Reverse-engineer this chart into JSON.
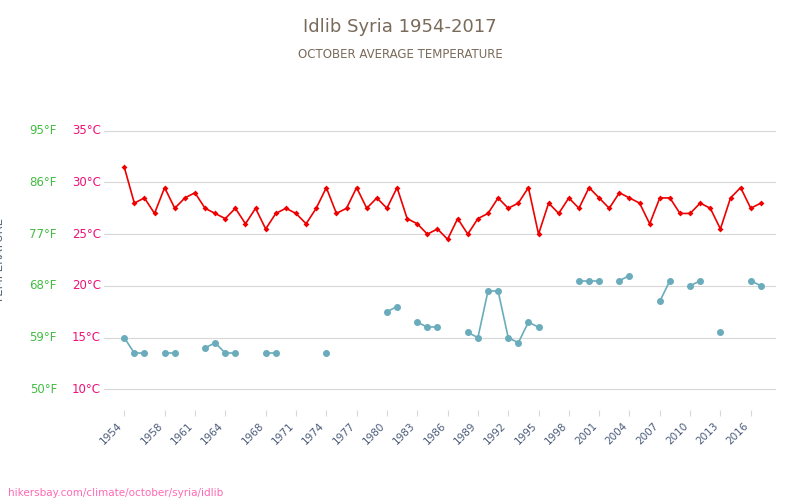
{
  "title": "Idlib Syria 1954-2017",
  "subtitle": "OCTOBER AVERAGE TEMPERATURE",
  "ylabel": "TEMPERATURE",
  "watermark": "hikersbay.com/climate/october/syria/idlib",
  "title_color": "#7a6a5a",
  "subtitle_color": "#7a6a5a",
  "ylabel_color": "#5a6a7a",
  "watermark_color": "#ff69b4",
  "background_color": "#ffffff",
  "grid_color": "#d8d8d8",
  "day_color": "#ee0000",
  "night_color": "#6aacbc",
  "tick_color_celsius": "#ee1177",
  "tick_color_fahrenheit": "#44bb44",
  "years": [
    1954,
    1955,
    1956,
    1957,
    1958,
    1959,
    1960,
    1961,
    1962,
    1963,
    1964,
    1965,
    1966,
    1967,
    1968,
    1969,
    1970,
    1971,
    1972,
    1973,
    1974,
    1975,
    1976,
    1977,
    1978,
    1979,
    1980,
    1981,
    1982,
    1983,
    1984,
    1985,
    1986,
    1987,
    1988,
    1989,
    1990,
    1991,
    1992,
    1993,
    1994,
    1995,
    1996,
    1997,
    1998,
    1999,
    2000,
    2001,
    2002,
    2003,
    2004,
    2005,
    2006,
    2007,
    2008,
    2009,
    2010,
    2011,
    2012,
    2013,
    2014,
    2015,
    2016,
    2017
  ],
  "day_temps": [
    31.5,
    28.0,
    28.5,
    27.0,
    29.5,
    27.5,
    28.5,
    29.0,
    27.5,
    27.0,
    26.5,
    27.5,
    26.0,
    27.5,
    25.5,
    27.0,
    27.5,
    27.0,
    26.0,
    27.5,
    29.5,
    27.0,
    27.5,
    29.5,
    27.5,
    28.5,
    27.5,
    29.5,
    26.5,
    26.0,
    25.0,
    25.5,
    24.5,
    26.5,
    25.0,
    26.5,
    27.0,
    28.5,
    27.5,
    28.0,
    29.5,
    25.0,
    28.0,
    27.0,
    28.5,
    27.5,
    29.5,
    28.5,
    27.5,
    29.0,
    28.5,
    28.0,
    26.0,
    28.5,
    28.5,
    27.0,
    27.0,
    28.0,
    27.5,
    25.5,
    28.5,
    29.5,
    27.5,
    28.0
  ],
  "night_temps": [
    15.0,
    13.5,
    13.5,
    null,
    13.5,
    13.5,
    null,
    null,
    14.0,
    14.5,
    13.5,
    13.5,
    null,
    null,
    13.5,
    13.5,
    null,
    null,
    null,
    null,
    13.5,
    null,
    null,
    null,
    null,
    null,
    17.5,
    18.0,
    null,
    16.5,
    16.0,
    16.0,
    null,
    null,
    15.5,
    15.0,
    19.5,
    19.5,
    15.0,
    14.5,
    16.5,
    16.0,
    null,
    null,
    null,
    20.5,
    20.5,
    20.5,
    null,
    20.5,
    21.0,
    null,
    null,
    18.5,
    20.5,
    null,
    20.0,
    20.5,
    null,
    15.5,
    null,
    null,
    20.5,
    20.0
  ],
  "yticks_celsius": [
    10,
    15,
    20,
    25,
    30,
    35
  ],
  "yticks_fahrenheit": [
    50,
    59,
    68,
    77,
    86,
    95
  ],
  "ylim": [
    8,
    37
  ],
  "xtick_years": [
    1954,
    1958,
    1961,
    1964,
    1968,
    1971,
    1974,
    1977,
    1980,
    1983,
    1986,
    1989,
    1992,
    1995,
    1998,
    2001,
    2004,
    2007,
    2010,
    2013,
    2016
  ]
}
